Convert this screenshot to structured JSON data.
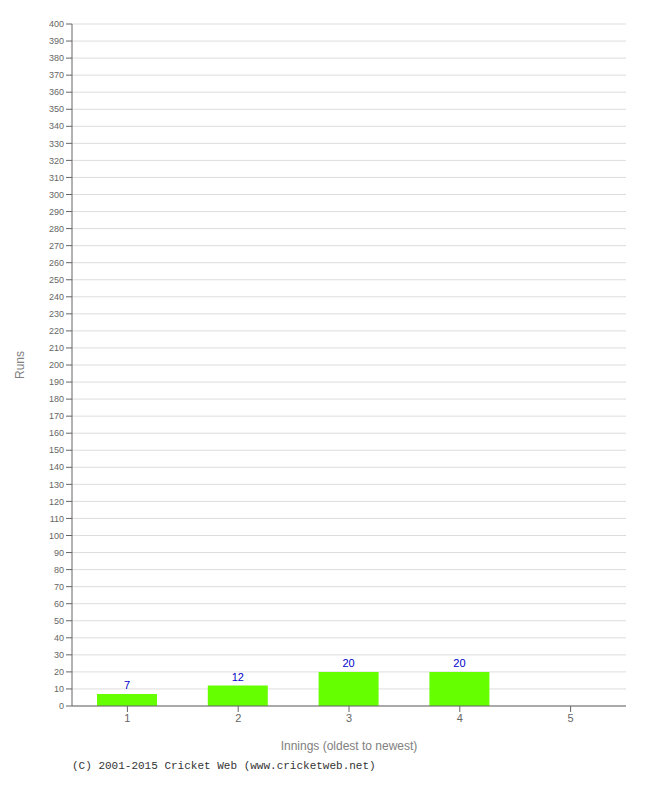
{
  "chart_data": {
    "type": "bar",
    "xlabel": "Innings (oldest to newest)",
    "ylabel": "Runs",
    "categories": [
      1,
      2,
      3,
      4,
      5
    ],
    "values": [
      7,
      12,
      20,
      20,
      0
    ],
    "color": "#66ff00",
    "ylim": [
      0,
      400
    ],
    "yticks": [
      0,
      10,
      20,
      30,
      40,
      50,
      60,
      70,
      80,
      90,
      100,
      110,
      120,
      130,
      140,
      150,
      160,
      170,
      180,
      190,
      200,
      210,
      220,
      230,
      240,
      250,
      260,
      270,
      280,
      290,
      300,
      310,
      320,
      330,
      340,
      350,
      360,
      370,
      380,
      390,
      400
    ],
    "grid": true,
    "data_labels": true,
    "footer": "(C) 2001-2015 Cricket Web (www.cricketweb.net)"
  }
}
